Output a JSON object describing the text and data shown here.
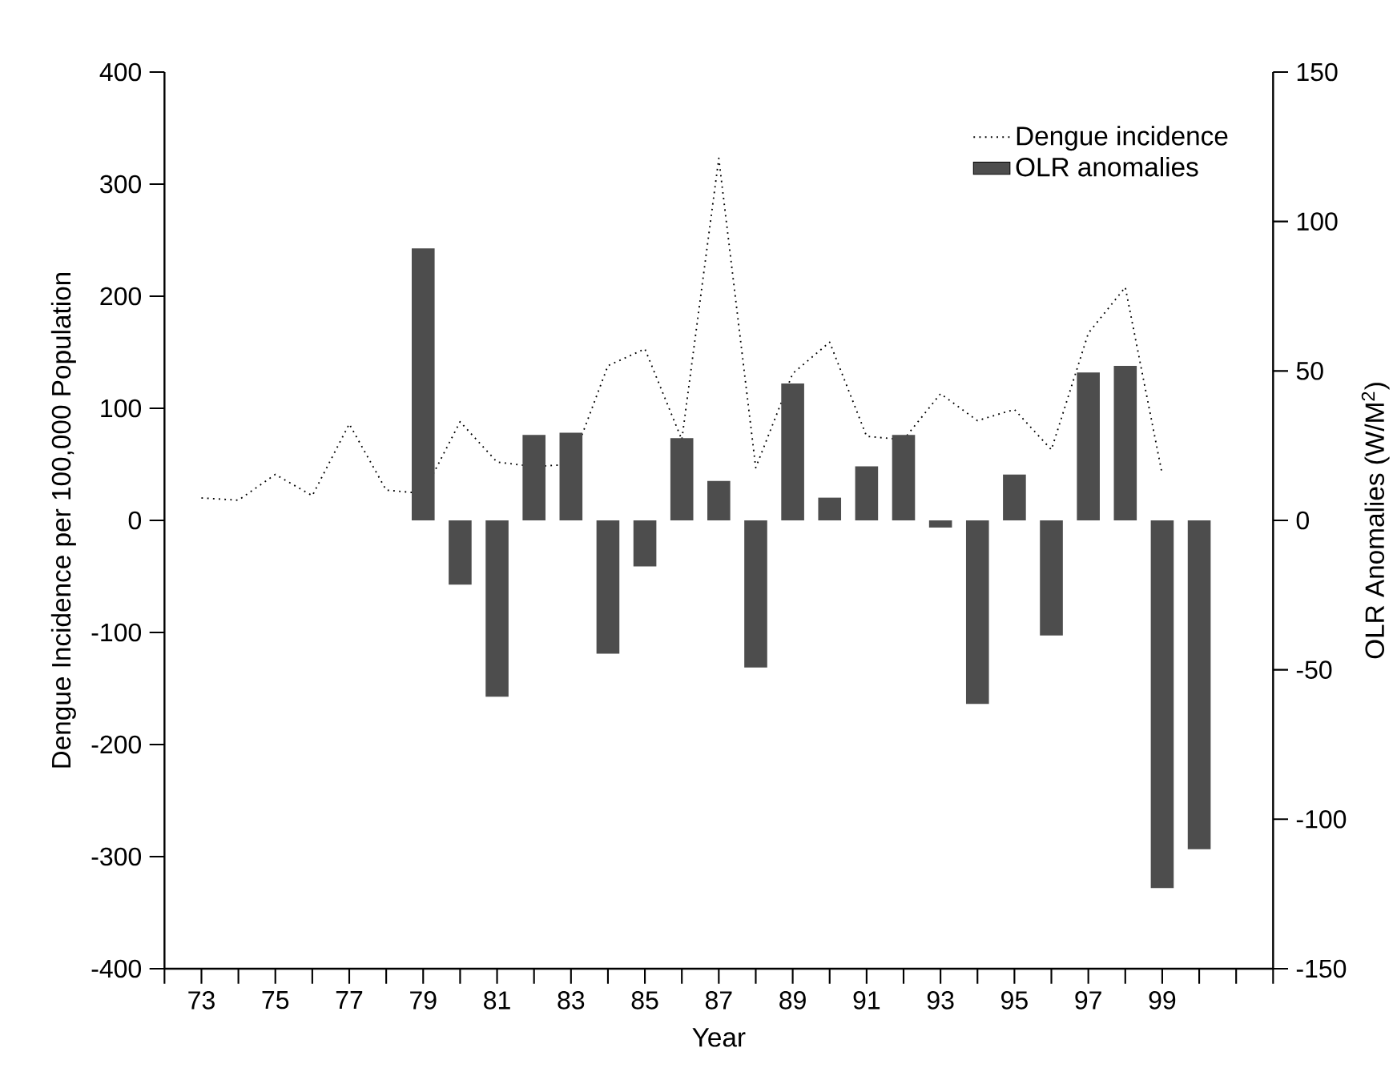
{
  "chart_data": {
    "type": "bar",
    "xlabel": "Year",
    "ylabel": "Dengue Incidence per 100,000 Population",
    "y2label": "OLR Anomalies (W/M$^{2}$)",
    "xlim": [
      72,
      102
    ],
    "xticks": [
      {
        "value": 72,
        "label": null
      },
      73,
      {
        "value": 74,
        "label": null
      },
      75,
      {
        "value": 76,
        "label": null
      },
      77,
      {
        "value": 78,
        "label": null
      },
      79,
      {
        "value": 80,
        "label": null
      },
      81,
      {
        "value": 82,
        "label": null
      },
      83,
      {
        "value": 84,
        "label": null
      },
      85,
      {
        "value": 86,
        "label": null
      },
      87,
      {
        "value": 88,
        "label": null
      },
      89,
      {
        "value": 90,
        "label": null
      },
      91,
      {
        "value": 92,
        "label": null
      },
      93,
      {
        "value": 94,
        "label": null
      },
      95,
      {
        "value": 96,
        "label": null
      },
      97,
      {
        "value": 98,
        "label": null
      },
      99,
      {
        "value": 100,
        "label": null
      },
      {
        "value": 101,
        "label": null
      },
      {
        "value": 102,
        "label": null
      }
    ],
    "ylim": [
      -400,
      400
    ],
    "yticks": [
      -400,
      -300,
      -200,
      -100,
      0,
      100,
      200,
      300,
      400
    ],
    "y2lim": [
      -150,
      150
    ],
    "y2ticks": [
      -150,
      -100,
      -50,
      0,
      50,
      100,
      150
    ],
    "legend": "top right",
    "series": [
      {
        "name": "Dengue incidence",
        "type": "line",
        "line_style": "dotted",
        "color": "#000000",
        "x": [
          73,
          74,
          75,
          76,
          77,
          78,
          79,
          80,
          81,
          82,
          83,
          84,
          85,
          86,
          87,
          88,
          89,
          90,
          91,
          92,
          93,
          94,
          95,
          96,
          97,
          98,
          99
        ],
        "values": [
          20,
          18,
          41,
          22,
          86,
          27,
          24,
          88,
          52,
          48,
          50,
          138,
          153,
          72,
          323,
          47,
          131,
          159,
          75,
          72,
          113,
          89,
          99,
          63,
          167,
          208,
          41
        ]
      },
      {
        "name": "OLR anomalies",
        "axis": "y2",
        "color": "#4d4d4d",
        "x": [
          79,
          80,
          81,
          82,
          83,
          84,
          85,
          86,
          87,
          88,
          89,
          90,
          91,
          92,
          93,
          94,
          95,
          96,
          97,
          98,
          99,
          100
        ],
        "values": [
          91,
          -21.5,
          -59,
          28.6,
          29.3,
          -44.6,
          -15.4,
          27.5,
          13.2,
          -49.2,
          45.8,
          7.6,
          18.1,
          28.6,
          -2.4,
          -61.4,
          15.3,
          -38.5,
          49.5,
          51.7,
          -123,
          -110
        ]
      }
    ]
  }
}
